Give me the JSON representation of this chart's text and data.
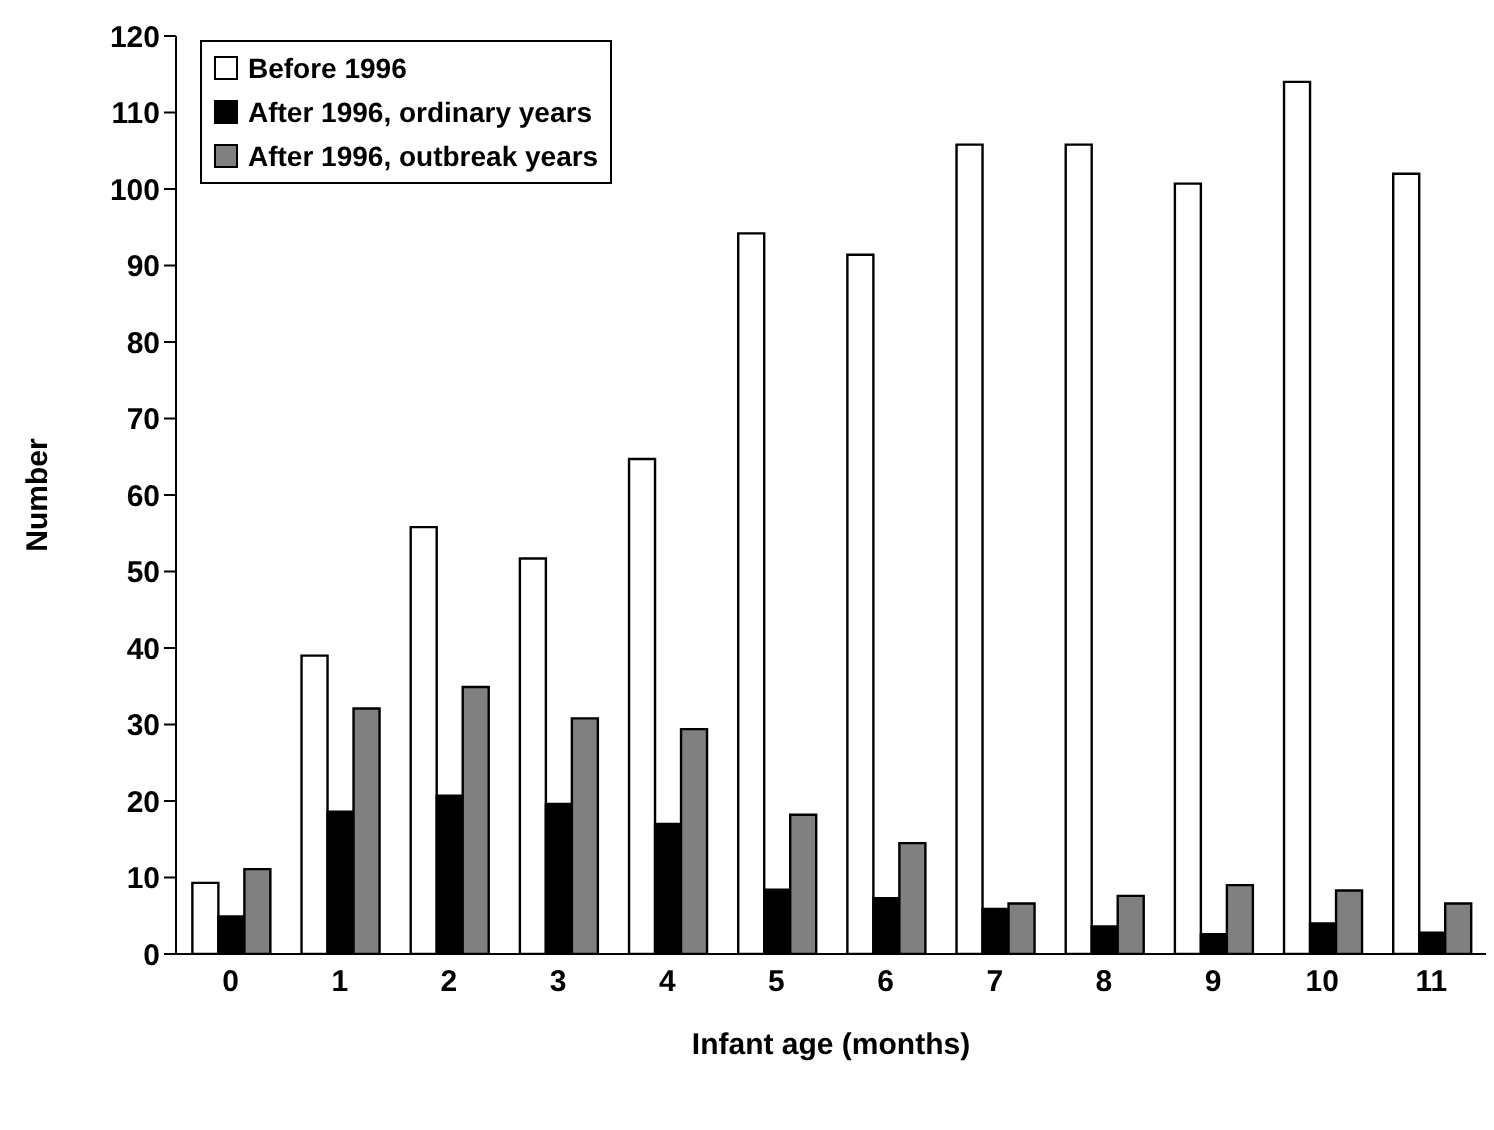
{
  "chart_data": {
    "type": "bar",
    "xlabel": "Infant age (months)",
    "ylabel": "Number",
    "categories": [
      "0",
      "1",
      "2",
      "3",
      "4",
      "5",
      "6",
      "7",
      "8",
      "9",
      "10",
      "11"
    ],
    "series": [
      {
        "name": "Before 1996",
        "color": "#ffffff",
        "values": [
          9.3,
          39,
          55.8,
          51.7,
          64.7,
          94.2,
          91.4,
          105.8,
          105.8,
          100.7,
          114,
          102
        ]
      },
      {
        "name": "After 1996, ordinary years",
        "color": "#000000",
        "values": [
          4.9,
          18.6,
          20.7,
          19.6,
          17,
          8.4,
          7.3,
          5.9,
          3.6,
          2.6,
          4,
          2.8
        ]
      },
      {
        "name": "After 1996, outbreak years",
        "color": "#808080",
        "values": [
          11.1,
          32.1,
          34.9,
          30.8,
          29.4,
          18.2,
          14.5,
          6.6,
          7.6,
          9,
          8.3,
          6.6
        ]
      }
    ],
    "ylim": [
      0,
      120
    ],
    "yticks": [
      0,
      10,
      20,
      30,
      40,
      50,
      60,
      70,
      80,
      90,
      100,
      110,
      120
    ],
    "grid": false,
    "legend": "top left"
  }
}
